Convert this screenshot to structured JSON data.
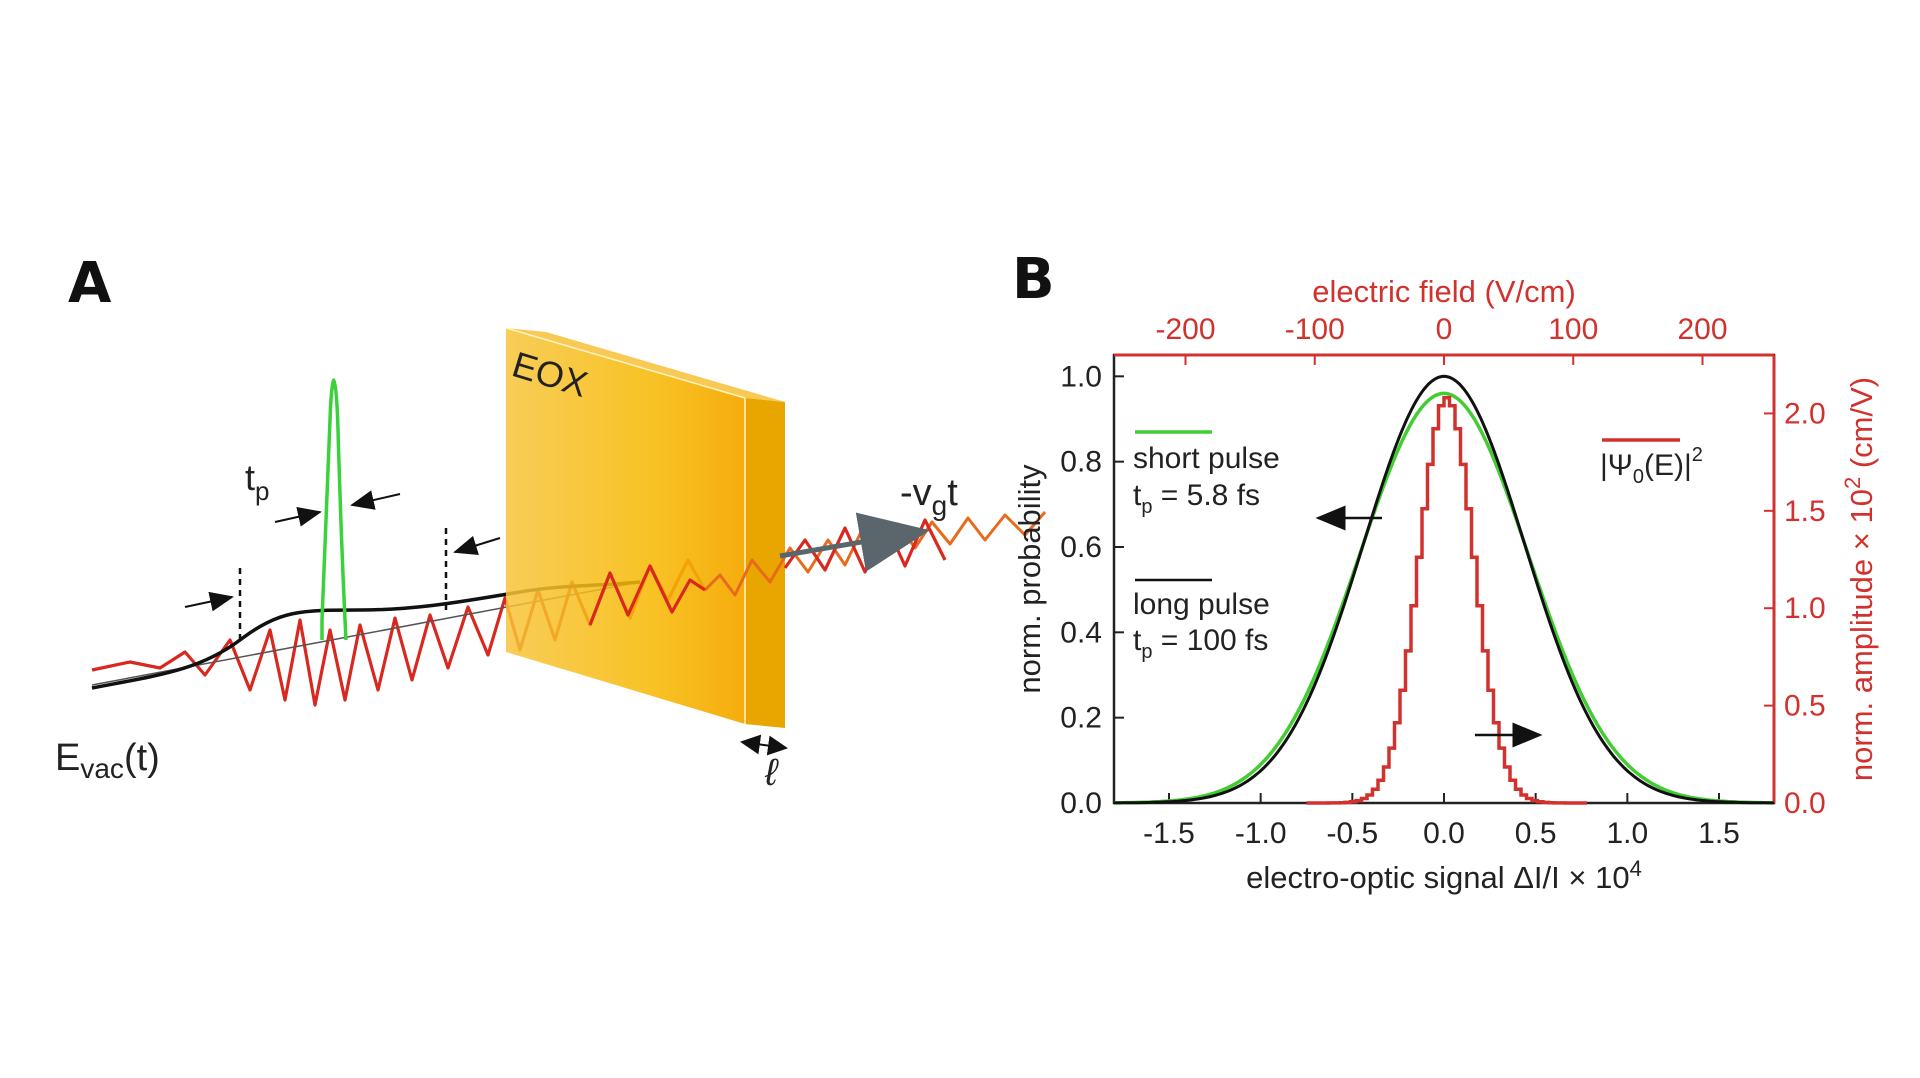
{
  "panel_a": {
    "letter": "A",
    "crystal_label": "EOX",
    "pulse_duration_label": "t",
    "pulse_duration_sub": "p",
    "velocity_label": "-v",
    "velocity_sub": "g",
    "velocity_suffix": "t",
    "field_label": "E",
    "field_sub": "vac",
    "field_suffix": "(t)",
    "thickness_label": "ℓ",
    "colors": {
      "crystal": "#f5b400",
      "pulse": "#3ad13a",
      "field": "#d8281f",
      "envelope": "#111111",
      "arrow": "#5b666c"
    }
  },
  "panel_b": {
    "letter": "B"
  },
  "chart_data": {
    "type": "line",
    "title": "",
    "xlabel": "electro-optic signal ΔI/I × 10",
    "xlabel_sup": "4",
    "xlim": [
      -1.8,
      1.8
    ],
    "xticks": [
      "-1.5",
      "-1.0",
      "-0.5",
      "0.0",
      "0.5",
      "1.0",
      "1.5"
    ],
    "ylabel": "norm. probability",
    "ylim": [
      0.0,
      1.05
    ],
    "yticks": [
      "0.0",
      "0.2",
      "0.4",
      "0.6",
      "0.8",
      "1.0"
    ],
    "top_xlabel": "electric field (V/cm)",
    "top_xticks": [
      "-200",
      "-100",
      "0",
      "100",
      "200"
    ],
    "right_ylabel": "norm. amplitude × 10",
    "right_ylabel_sup": "2",
    "right_ylabel_unit": " (cm/V)",
    "right_yticks": [
      "0.0",
      "0.5",
      "1.0",
      "1.5",
      "2.0"
    ],
    "colors": {
      "short": "#44cc33",
      "long": "#111111",
      "vacuum": "#d2322d",
      "axis_red": "#d2322d"
    },
    "series": [
      {
        "name": "short pulse",
        "param_label": "t",
        "param_sub": "p",
        "param_value": " = 5.8 fs",
        "shape": "gaussian",
        "peak": 0.96,
        "sigma": 0.46
      },
      {
        "name": "long pulse",
        "param_label": "t",
        "param_sub": "p",
        "param_value": " = 100 fs",
        "shape": "gaussian",
        "peak": 1.0,
        "sigma": 0.44
      },
      {
        "name": "|Ψ",
        "name_sub": "0",
        "name_suffix": "(E)|",
        "name_sup": "2",
        "shape": "gaussian-step",
        "peak": 0.95,
        "sigma": 0.15
      }
    ]
  }
}
